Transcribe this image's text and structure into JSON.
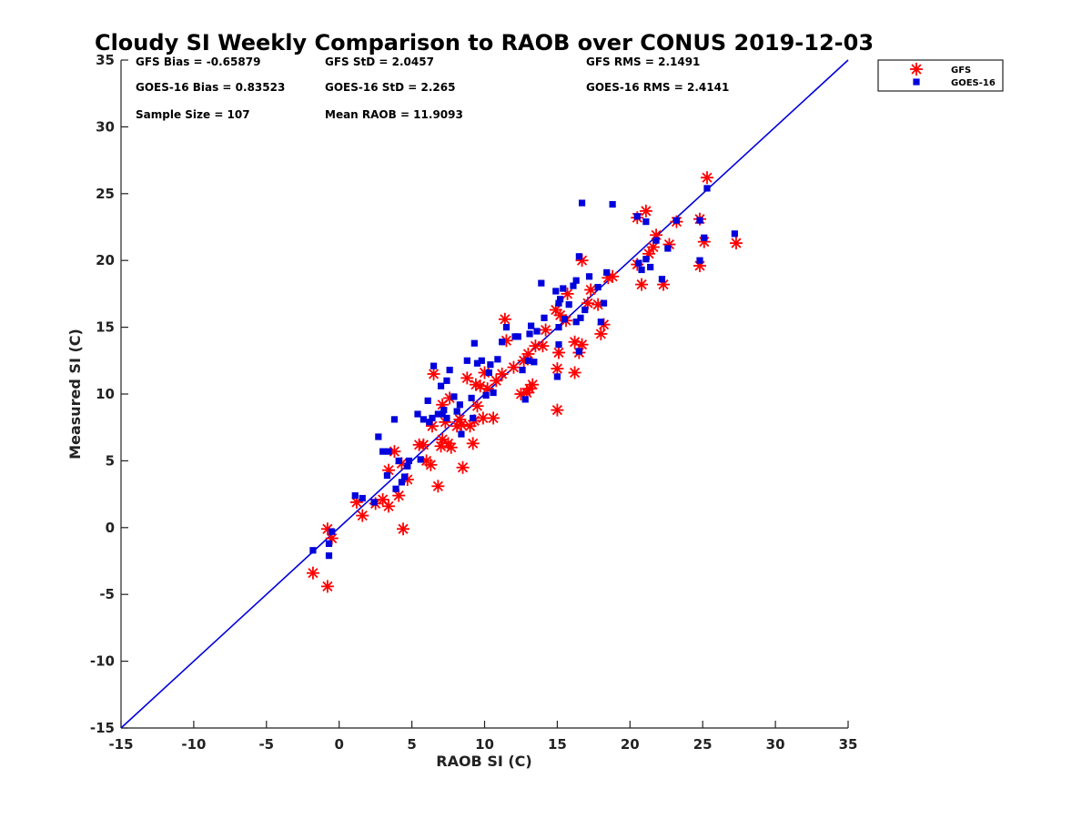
{
  "chart_data": {
    "type": "scatter",
    "title": "Cloudy SI Weekly Comparison to RAOB over CONUS 2019-12-03",
    "xlabel": "RAOB SI (C)",
    "ylabel": "Measured SI (C)",
    "xlim": [
      -15,
      35
    ],
    "ylim": [
      -15,
      35
    ],
    "xticks": [
      -15,
      -10,
      -5,
      0,
      5,
      10,
      15,
      20,
      25,
      30,
      35
    ],
    "yticks": [
      -15,
      -10,
      -5,
      0,
      5,
      10,
      15,
      20,
      25,
      30,
      35
    ],
    "grid": false,
    "legend_position": "top-right outside",
    "reference_line": {
      "type": "1:1",
      "from": [
        -15,
        -15
      ],
      "to": [
        35,
        35
      ],
      "color": "#0000dd"
    },
    "stats": [
      {
        "text": "GFS Bias = -0.65879"
      },
      {
        "text": "GFS StD = 2.0457"
      },
      {
        "text": "GFS RMS = 2.1491"
      },
      {
        "text": "GOES-16 Bias = 0.83523"
      },
      {
        "text": "GOES-16 StD = 2.265"
      },
      {
        "text": "GOES-16 RMS = 2.4141"
      },
      {
        "text": "Sample Size = 107"
      },
      {
        "text": "Mean RAOB = 11.9093"
      }
    ],
    "series": [
      {
        "name": "GFS",
        "marker": "asterisk",
        "color": "#ff0000",
        "points": [
          [
            -1.8,
            -3.4
          ],
          [
            -0.8,
            -0.1
          ],
          [
            -0.8,
            -4.4
          ],
          [
            -0.5,
            -0.8
          ],
          [
            1.2,
            1.9
          ],
          [
            1.6,
            0.9
          ],
          [
            2.5,
            1.8
          ],
          [
            3.0,
            2.1
          ],
          [
            3.4,
            1.6
          ],
          [
            3.4,
            4.3
          ],
          [
            3.8,
            5.7
          ],
          [
            4.1,
            2.4
          ],
          [
            4.3,
            4.8
          ],
          [
            4.4,
            -0.1
          ],
          [
            4.7,
            3.6
          ],
          [
            5.5,
            6.2
          ],
          [
            5.8,
            6.2
          ],
          [
            6.0,
            5.0
          ],
          [
            6.3,
            4.7
          ],
          [
            6.4,
            7.6
          ],
          [
            6.5,
            11.5
          ],
          [
            6.8,
            3.1
          ],
          [
            7.0,
            6.1
          ],
          [
            7.1,
            6.6
          ],
          [
            7.1,
            9.2
          ],
          [
            7.3,
            7.9
          ],
          [
            7.5,
            6.3
          ],
          [
            7.6,
            9.7
          ],
          [
            7.7,
            6.0
          ],
          [
            8.1,
            7.6
          ],
          [
            8.3,
            8.1
          ],
          [
            8.4,
            7.7
          ],
          [
            8.5,
            4.5
          ],
          [
            8.8,
            11.2
          ],
          [
            9.0,
            7.6
          ],
          [
            9.2,
            6.3
          ],
          [
            9.3,
            8.0
          ],
          [
            9.4,
            10.7
          ],
          [
            9.5,
            9.1
          ],
          [
            9.7,
            10.6
          ],
          [
            9.9,
            8.2
          ],
          [
            10.0,
            11.6
          ],
          [
            10.2,
            10.4
          ],
          [
            10.6,
            8.2
          ],
          [
            10.8,
            11.0
          ],
          [
            11.2,
            11.5
          ],
          [
            11.4,
            15.6
          ],
          [
            11.5,
            14.0
          ],
          [
            12.0,
            12.0
          ],
          [
            12.5,
            10.0
          ],
          [
            12.7,
            12.5
          ],
          [
            12.9,
            10.1
          ],
          [
            13.0,
            13.0
          ],
          [
            13.1,
            10.4
          ],
          [
            13.3,
            10.7
          ],
          [
            13.5,
            13.6
          ],
          [
            14.0,
            13.6
          ],
          [
            14.2,
            14.8
          ],
          [
            14.9,
            16.3
          ],
          [
            15.0,
            8.8
          ],
          [
            15.0,
            11.9
          ],
          [
            15.1,
            13.1
          ],
          [
            15.2,
            15.9
          ],
          [
            15.6,
            15.5
          ],
          [
            15.7,
            17.5
          ],
          [
            16.2,
            11.6
          ],
          [
            16.2,
            13.9
          ],
          [
            16.5,
            13.1
          ],
          [
            16.7,
            13.7
          ],
          [
            16.7,
            20.0
          ],
          [
            17.1,
            16.8
          ],
          [
            17.3,
            17.8
          ],
          [
            17.8,
            16.7
          ],
          [
            18.0,
            14.5
          ],
          [
            18.2,
            15.2
          ],
          [
            18.5,
            18.7
          ],
          [
            18.8,
            18.8
          ],
          [
            20.5,
            19.7
          ],
          [
            20.5,
            23.2
          ],
          [
            20.8,
            18.2
          ],
          [
            21.1,
            23.7
          ],
          [
            21.3,
            20.5
          ],
          [
            21.6,
            21.0
          ],
          [
            21.8,
            21.9
          ],
          [
            22.3,
            18.2
          ],
          [
            22.7,
            21.2
          ],
          [
            23.2,
            22.9
          ],
          [
            24.8,
            19.6
          ],
          [
            24.8,
            23.1
          ],
          [
            25.1,
            21.4
          ],
          [
            25.3,
            26.2
          ],
          [
            27.3,
            21.3
          ]
        ]
      },
      {
        "name": "GOES-16",
        "marker": "square",
        "color": "#0000dd",
        "points": [
          [
            -1.8,
            -1.7
          ],
          [
            -0.7,
            -2.1
          ],
          [
            -0.7,
            -1.2
          ],
          [
            -0.5,
            -0.3
          ],
          [
            1.1,
            2.4
          ],
          [
            1.6,
            2.2
          ],
          [
            2.4,
            1.9
          ],
          [
            2.7,
            6.8
          ],
          [
            3.0,
            5.7
          ],
          [
            3.3,
            3.9
          ],
          [
            3.4,
            5.7
          ],
          [
            3.8,
            8.1
          ],
          [
            3.9,
            2.9
          ],
          [
            4.1,
            5.0
          ],
          [
            4.3,
            3.4
          ],
          [
            4.5,
            3.8
          ],
          [
            4.7,
            4.6
          ],
          [
            4.8,
            5.0
          ],
          [
            5.4,
            8.5
          ],
          [
            5.6,
            5.1
          ],
          [
            5.8,
            8.1
          ],
          [
            6.1,
            9.5
          ],
          [
            6.2,
            7.9
          ],
          [
            6.4,
            8.2
          ],
          [
            6.5,
            12.1
          ],
          [
            6.8,
            8.5
          ],
          [
            7.0,
            10.6
          ],
          [
            7.1,
            8.5
          ],
          [
            7.2,
            8.8
          ],
          [
            7.4,
            8.2
          ],
          [
            7.4,
            11.0
          ],
          [
            7.6,
            11.8
          ],
          [
            7.9,
            9.8
          ],
          [
            8.1,
            8.7
          ],
          [
            8.4,
            7.0
          ],
          [
            8.3,
            9.2
          ],
          [
            8.8,
            12.5
          ],
          [
            9.1,
            9.7
          ],
          [
            9.2,
            8.2
          ],
          [
            9.3,
            13.8
          ],
          [
            9.5,
            12.3
          ],
          [
            9.8,
            12.5
          ],
          [
            10.1,
            9.9
          ],
          [
            10.3,
            11.6
          ],
          [
            10.4,
            12.2
          ],
          [
            10.6,
            10.1
          ],
          [
            10.9,
            12.6
          ],
          [
            11.2,
            13.9
          ],
          [
            11.5,
            15.0
          ],
          [
            12.1,
            14.3
          ],
          [
            12.3,
            14.3
          ],
          [
            12.6,
            11.8
          ],
          [
            12.8,
            9.6
          ],
          [
            13.0,
            12.5
          ],
          [
            13.1,
            14.5
          ],
          [
            13.2,
            15.1
          ],
          [
            13.4,
            12.4
          ],
          [
            13.6,
            14.7
          ],
          [
            13.9,
            18.3
          ],
          [
            14.1,
            15.7
          ],
          [
            14.9,
            17.7
          ],
          [
            15.0,
            11.3
          ],
          [
            15.1,
            13.7
          ],
          [
            15.1,
            15.0
          ],
          [
            15.1,
            16.8
          ],
          [
            15.2,
            17.1
          ],
          [
            15.4,
            17.9
          ],
          [
            15.5,
            15.6
          ],
          [
            15.8,
            16.7
          ],
          [
            16.1,
            18.1
          ],
          [
            16.3,
            15.4
          ],
          [
            16.3,
            18.5
          ],
          [
            16.5,
            13.2
          ],
          [
            16.6,
            15.7
          ],
          [
            16.5,
            20.3
          ],
          [
            16.7,
            24.3
          ],
          [
            16.9,
            16.3
          ],
          [
            17.2,
            18.8
          ],
          [
            17.8,
            18.0
          ],
          [
            18.0,
            15.4
          ],
          [
            18.2,
            16.8
          ],
          [
            18.4,
            19.1
          ],
          [
            18.8,
            24.2
          ],
          [
            20.5,
            23.3
          ],
          [
            20.6,
            19.8
          ],
          [
            20.8,
            19.3
          ],
          [
            21.1,
            20.1
          ],
          [
            21.1,
            22.9
          ],
          [
            21.4,
            19.5
          ],
          [
            21.8,
            21.5
          ],
          [
            22.2,
            18.6
          ],
          [
            22.6,
            20.9
          ],
          [
            23.2,
            23.0
          ],
          [
            24.8,
            20.0
          ],
          [
            24.8,
            23.0
          ],
          [
            25.1,
            21.7
          ],
          [
            25.3,
            25.4
          ],
          [
            27.2,
            22.0
          ]
        ]
      }
    ]
  }
}
